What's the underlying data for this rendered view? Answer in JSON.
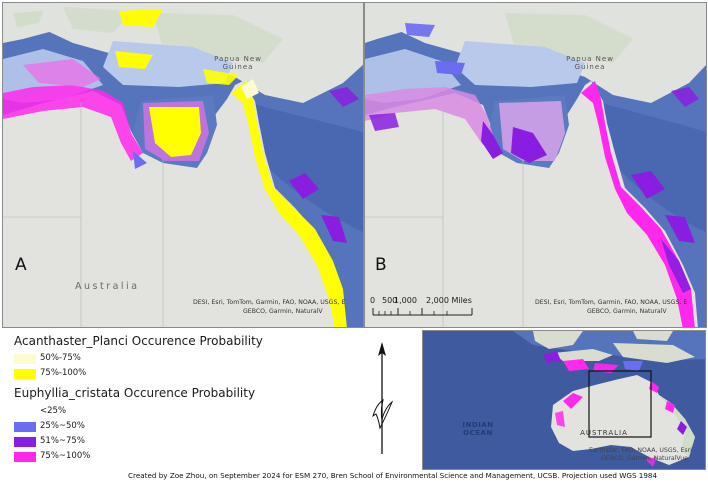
{
  "panel_a": {
    "letter": "A",
    "country_label": "Australia",
    "png_label": "Papua New Guinea",
    "attribution_line1": "DESI, Esri, TomTom, Garmin, FAO, NOAA, USGS, E",
    "attribution_line2": "GEBCO, Garmin, NaturalV"
  },
  "panel_b": {
    "letter": "B",
    "png_label": "Papua New Guinea",
    "attribution_line1": "DESI, Esri, TomTom, Garmin, FAO, NOAA, USGS, E",
    "attribution_line2": "GEBCO, Garmin, NaturalV"
  },
  "scalebar": {
    "label_0": "0",
    "label_500": "500",
    "label_1000": "1,000",
    "label_2000": "2,000 Miles"
  },
  "inset": {
    "ocean_label": "INDIAN OCEAN",
    "country_label": "AUSTRALIA",
    "attribution_line1": "Earthstar, FAO, NOAA, USGS, Esri",
    "attribution_line2": "GEBCO, Garmin, NaturalVue"
  },
  "legend": {
    "group1_title": "Acanthaster_Planci Occurence Probability",
    "group1_items": [
      {
        "label": "50%-75%",
        "color": "#fdfbd0"
      },
      {
        "label": "75%-100%",
        "color": "#ffff00"
      }
    ],
    "group2_title": "Euphyllia_cristata Occurence Probability",
    "group2_items": [
      {
        "label": "<25%",
        "color": "#ffffff"
      },
      {
        "label": "25%~50%",
        "color": "#6a6cf2"
      },
      {
        "label": "51%~75%",
        "color": "#8a1ee0"
      },
      {
        "label": "75%~100%",
        "color": "#ff28ec"
      }
    ]
  },
  "colors": {
    "ocean": "#5574bb",
    "deep_ocean": "#3f5a9e",
    "land": "#e2e3de",
    "land_forest": "#d1dcc9",
    "shelf": "#b8c9ec",
    "yellow": "#ffff00",
    "pale_yellow": "#fdfbd0",
    "blue_class": "#6a6cf2",
    "purple_class": "#8a1ee0",
    "magenta_class": "#ff28ec"
  },
  "north_arrow_icon": "north-arrow-icon",
  "credit": "Created by Zoe Zhou, on September 2024 for ESM 270, Bren School of Environmental Science and Management, UCSB. Projection used WGS 1984"
}
